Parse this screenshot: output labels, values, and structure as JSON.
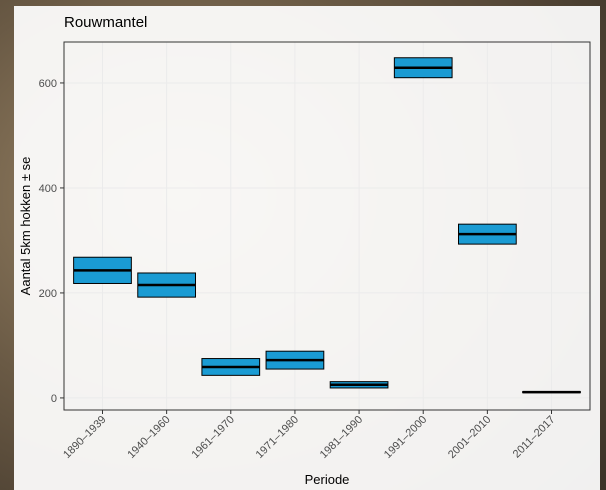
{
  "chart_data": {
    "type": "crossbar",
    "title": "Rouwmantel",
    "x_label": "Periode",
    "y_label": "Aantal 5km hokken ± se",
    "categories": [
      "1890–1939",
      "1940–1960",
      "1961–1970",
      "1971–1980",
      "1981–1990",
      "1991–2000",
      "2001–2010",
      "2011–2017"
    ],
    "values": [
      243,
      215,
      59,
      72,
      25,
      629,
      312,
      11
    ],
    "se": [
      25,
      23,
      16,
      17,
      6,
      19,
      19,
      1
    ],
    "color": "#1a9bd3",
    "ylim": [
      -23,
      678
    ],
    "yticks": [
      0,
      200,
      400,
      600
    ],
    "grid": true
  }
}
